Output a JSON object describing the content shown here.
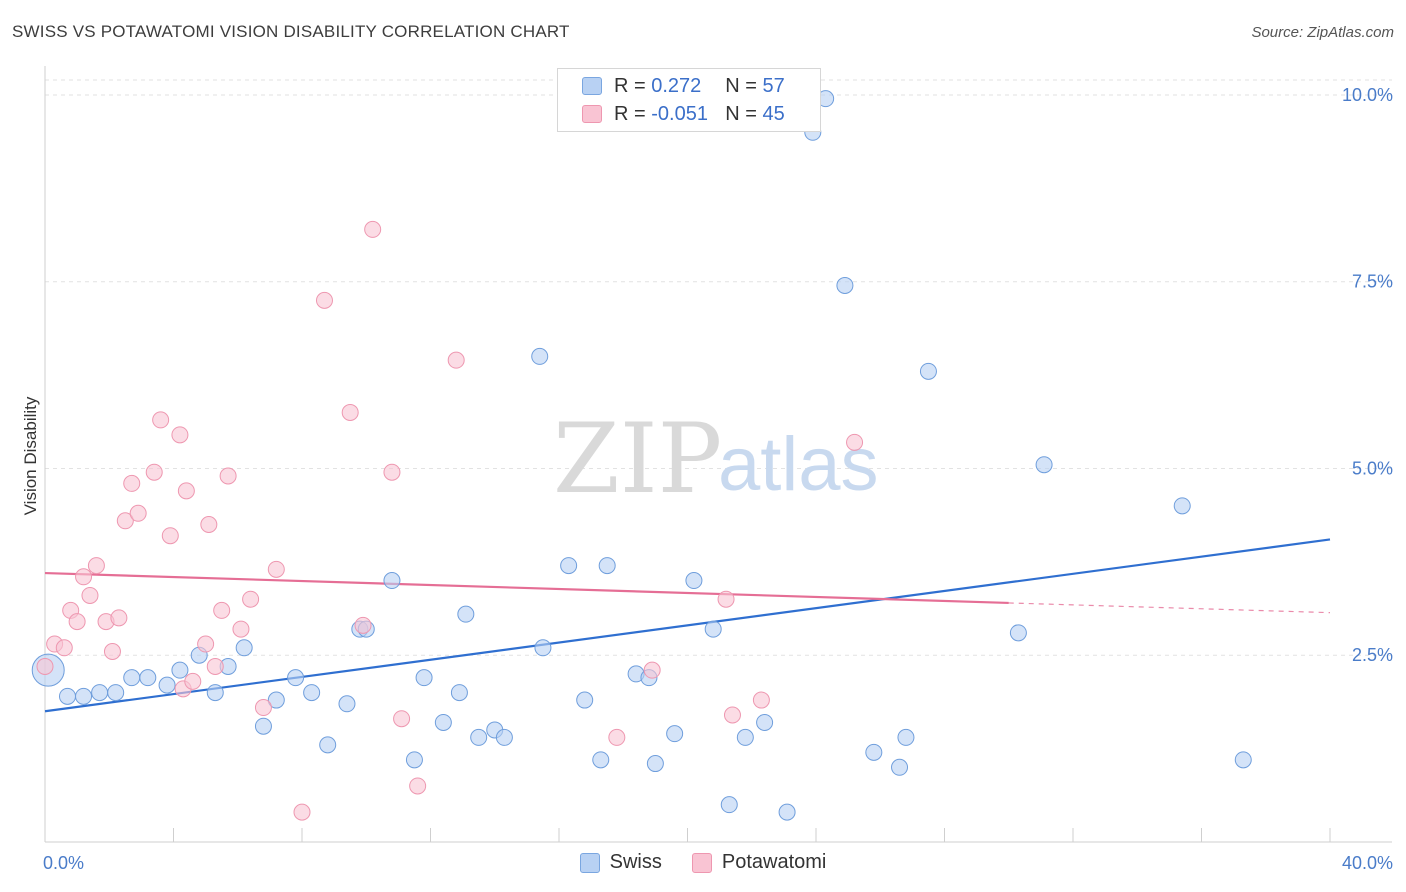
{
  "header": {
    "title": "SWISS VS POTAWATOMI VISION DISABILITY CORRELATION CHART",
    "source": "Source: ZipAtlas.com"
  },
  "watermark": {
    "part1": "ZIP",
    "part2": "atlas"
  },
  "legend": {
    "rows": [
      {
        "r_label": "R = ",
        "r_value": "0.272",
        "n_label": "N = ",
        "n_value": "57",
        "color": "#b8d1f3",
        "stroke": "#7aa6e0"
      },
      {
        "r_label": "R = ",
        "r_value": "-0.051",
        "n_label": "N = ",
        "n_value": "45",
        "color": "#f9c4d3",
        "stroke": "#ee97b0"
      }
    ]
  },
  "bottom_legend": [
    {
      "label": "Swiss",
      "color": "#b8d1f3",
      "stroke": "#7aa6e0"
    },
    {
      "label": "Potawatomi",
      "color": "#f9c4d3",
      "stroke": "#ee97b0"
    }
  ],
  "chart_data": {
    "type": "scatter",
    "title": "SWISS VS POTAWATOMI VISION DISABILITY CORRELATION CHART",
    "xlabel": "",
    "ylabel": "Vision Disability",
    "xlim": [
      0,
      40
    ],
    "ylim": [
      0,
      10.2
    ],
    "x_tick_labels": [
      {
        "value": 0,
        "label": "0.0%"
      },
      {
        "value": 40,
        "label": "40.0%"
      }
    ],
    "y_ticks": [
      {
        "value": 2.5,
        "label": "2.5%"
      },
      {
        "value": 5.0,
        "label": "5.0%"
      },
      {
        "value": 7.5,
        "label": "7.5%"
      },
      {
        "value": 10.0,
        "label": "10.0%"
      }
    ],
    "x_minor_ticks": [
      0,
      4,
      8,
      12,
      16,
      20,
      24,
      28,
      32,
      36,
      40
    ],
    "grid": true,
    "series": [
      {
        "name": "Swiss",
        "color": "#b8d1f3",
        "stroke": "#6f9edc",
        "trend": {
          "x0": 0,
          "y0": 1.75,
          "x1": 40,
          "y1": 4.05,
          "color": "#2f6fd0"
        },
        "points": [
          [
            0.1,
            2.3,
            "big"
          ],
          [
            0.7,
            1.95
          ],
          [
            1.2,
            1.95
          ],
          [
            1.7,
            2.0
          ],
          [
            2.2,
            2.0
          ],
          [
            2.7,
            2.2
          ],
          [
            3.2,
            2.2
          ],
          [
            3.8,
            2.1
          ],
          [
            4.2,
            2.3
          ],
          [
            4.8,
            2.5
          ],
          [
            5.3,
            2.0
          ],
          [
            5.7,
            2.35
          ],
          [
            6.2,
            2.6
          ],
          [
            6.8,
            1.55
          ],
          [
            7.2,
            1.9
          ],
          [
            7.8,
            2.2
          ],
          [
            8.3,
            2.0
          ],
          [
            8.8,
            1.3
          ],
          [
            9.4,
            1.85
          ],
          [
            9.8,
            2.85
          ],
          [
            10.0,
            2.85
          ],
          [
            10.8,
            3.5
          ],
          [
            11.5,
            1.1
          ],
          [
            11.8,
            2.2
          ],
          [
            12.4,
            1.6
          ],
          [
            12.9,
            2.0
          ],
          [
            13.1,
            3.05
          ],
          [
            13.5,
            1.4
          ],
          [
            14.0,
            1.5
          ],
          [
            14.3,
            1.4
          ],
          [
            15.5,
            2.6
          ],
          [
            15.4,
            6.5
          ],
          [
            16.3,
            3.7
          ],
          [
            16.8,
            1.9
          ],
          [
            17.3,
            1.1
          ],
          [
            17.5,
            3.7
          ],
          [
            18.4,
            2.25
          ],
          [
            18.8,
            2.2
          ],
          [
            19.0,
            1.05
          ],
          [
            19.6,
            1.45
          ],
          [
            20.2,
            3.5
          ],
          [
            20.8,
            2.85
          ],
          [
            21.3,
            0.5
          ],
          [
            21.8,
            1.4
          ],
          [
            22.4,
            1.6
          ],
          [
            23.1,
            0.4
          ],
          [
            23.9,
            9.5
          ],
          [
            24.3,
            9.95
          ],
          [
            24.9,
            7.45
          ],
          [
            25.8,
            1.2
          ],
          [
            26.6,
            1.0
          ],
          [
            26.8,
            1.4
          ],
          [
            27.5,
            6.3
          ],
          [
            30.3,
            2.8
          ],
          [
            31.1,
            5.05
          ],
          [
            35.4,
            4.5
          ],
          [
            37.3,
            1.1
          ]
        ]
      },
      {
        "name": "Potawatomi",
        "color": "#f9c4d3",
        "stroke": "#ee97b0",
        "trend": {
          "x0": 0,
          "y0": 3.6,
          "x1": 30.0,
          "y1": 3.2,
          "dash_x1": 40,
          "dash_y1": 3.07,
          "color": "#e56e95"
        },
        "points": [
          [
            0.0,
            2.35
          ],
          [
            0.3,
            2.65
          ],
          [
            0.6,
            2.6
          ],
          [
            0.8,
            3.1
          ],
          [
            1.0,
            2.95
          ],
          [
            1.2,
            3.55
          ],
          [
            1.4,
            3.3
          ],
          [
            1.6,
            3.7
          ],
          [
            1.9,
            2.95
          ],
          [
            2.1,
            2.55
          ],
          [
            2.3,
            3.0
          ],
          [
            2.5,
            4.3
          ],
          [
            2.7,
            4.8
          ],
          [
            2.9,
            4.4
          ],
          [
            3.4,
            4.95
          ],
          [
            3.6,
            5.65
          ],
          [
            3.9,
            4.1
          ],
          [
            4.2,
            5.45
          ],
          [
            4.3,
            2.05
          ],
          [
            4.4,
            4.7
          ],
          [
            4.6,
            2.15
          ],
          [
            5.0,
            2.65
          ],
          [
            5.1,
            4.25
          ],
          [
            5.3,
            2.35
          ],
          [
            5.5,
            3.1
          ],
          [
            5.7,
            4.9
          ],
          [
            6.1,
            2.85
          ],
          [
            6.4,
            3.25
          ],
          [
            6.8,
            1.8
          ],
          [
            7.2,
            3.65
          ],
          [
            8.0,
            0.4
          ],
          [
            8.7,
            7.25
          ],
          [
            9.5,
            5.75
          ],
          [
            9.9,
            2.9
          ],
          [
            10.2,
            8.2
          ],
          [
            10.8,
            4.95
          ],
          [
            11.1,
            1.65
          ],
          [
            11.6,
            0.75
          ],
          [
            12.8,
            6.45
          ],
          [
            17.8,
            1.4
          ],
          [
            18.9,
            2.3
          ],
          [
            21.2,
            3.25
          ],
          [
            21.4,
            1.7
          ],
          [
            22.3,
            1.9
          ],
          [
            25.2,
            5.35
          ]
        ]
      }
    ]
  }
}
